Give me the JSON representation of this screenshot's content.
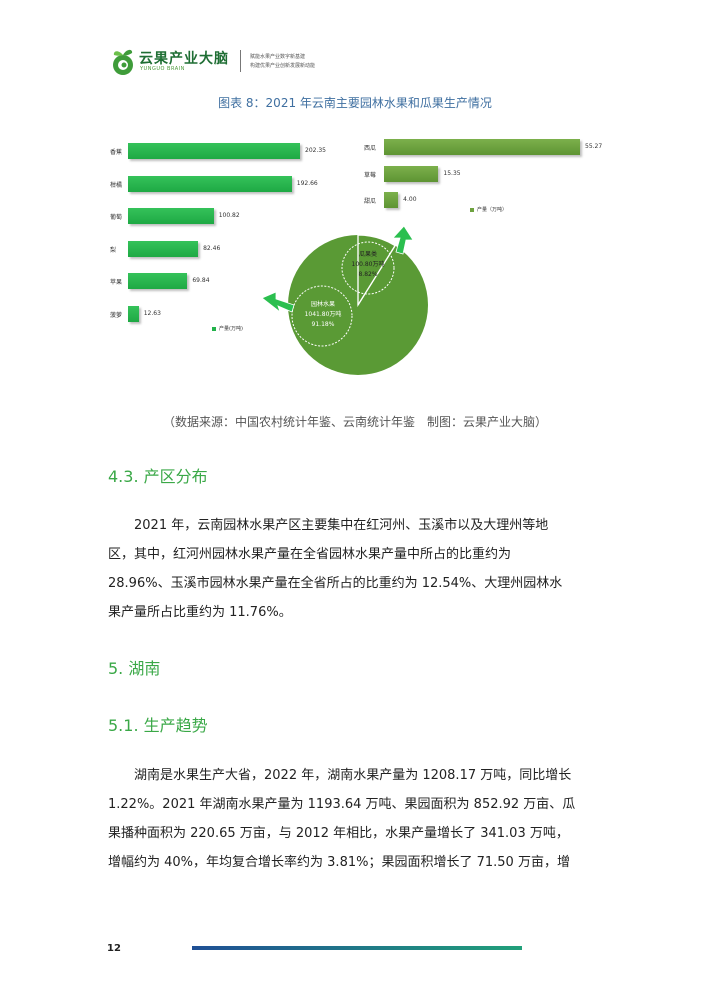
{
  "header": {
    "brand_cn": "云果产业大脑",
    "brand_en": "YUNGUO BRAIN",
    "tagline_1": "赋能水果产业数字新基建",
    "tagline_2": "构建优果产业创新发展新动能"
  },
  "figure": {
    "title": "图表 8：2021 年云南主要园林水果和瓜果生产情况",
    "source": "（数据来源：中国农村统计年鉴、云南统计年鉴　制图：云果产业大脑）"
  },
  "chart_data": [
    {
      "type": "bar",
      "orientation": "horizontal",
      "title": "",
      "categories": [
        "香蕉",
        "柑橘",
        "葡萄",
        "梨",
        "苹果",
        "菠萝"
      ],
      "series": [
        {
          "name": "产量(万吨)",
          "values": [
            202.35,
            192.66,
            100.82,
            82.46,
            69.84,
            12.63
          ]
        }
      ],
      "value_labels": [
        "202.35",
        "192.66",
        "100.82",
        "82.46",
        "69.84",
        "12.63"
      ],
      "legend": "产量(万吨)",
      "legend_position": "bottom-center",
      "colors": [
        "#22b24a"
      ]
    },
    {
      "type": "bar",
      "orientation": "horizontal",
      "title": "",
      "categories": [
        "西瓜",
        "草莓",
        "甜瓜"
      ],
      "series": [
        {
          "name": "产量（万吨）",
          "values": [
            55.27,
            15.35,
            4.0
          ]
        }
      ],
      "value_labels": [
        "55.27",
        "15.35",
        "4.00"
      ],
      "legend": "产量（万吨）",
      "legend_position": "bottom-center",
      "colors": [
        "#6ea23f"
      ]
    },
    {
      "type": "pie",
      "title": "",
      "slices": [
        {
          "name": "园林水果",
          "value": 1041.8,
          "value_label": "1041.80万吨",
          "percent_label": "91.18%",
          "color": "#5a9a35"
        },
        {
          "name": "瓜果类",
          "value": 100.8,
          "value_label": "100.80万吨",
          "percent_label": "8.82%",
          "color": "#ffffff"
        }
      ]
    }
  ],
  "sections": {
    "s43_title": "4.3. 产区分布",
    "s43_lines": [
      "　　2021 年，云南园林水果产区主要集中在红河州、玉溪市以及大理州等地",
      "区，其中，红河州园林水果产量在全省园林水果产量中所占的比重约为",
      "28.96%、玉溪市园林水果产量在全省所占的比重约为 12.54%、大理州园林水",
      "果产量所占比重约为 11.76%。"
    ],
    "s5_title": "5. 湖南",
    "s51_title": "5.1. 生产趋势",
    "s51_lines": [
      "　　湖南是水果生产大省，2022 年，湖南水果产量为 1208.17 万吨，同比增长",
      "1.22%。2021 年湖南水果产量为 1193.64 万吨、果园面积为 852.92 万亩、瓜",
      "果播种面积为 220.65 万亩，与 2012 年相比，水果产量增长了 341.03 万吨，",
      "增幅约为 40%，年均复合增长率约为 3.81%；果园面积增长了 71.50 万亩，增"
    ]
  },
  "footer": {
    "page_number": "12"
  }
}
